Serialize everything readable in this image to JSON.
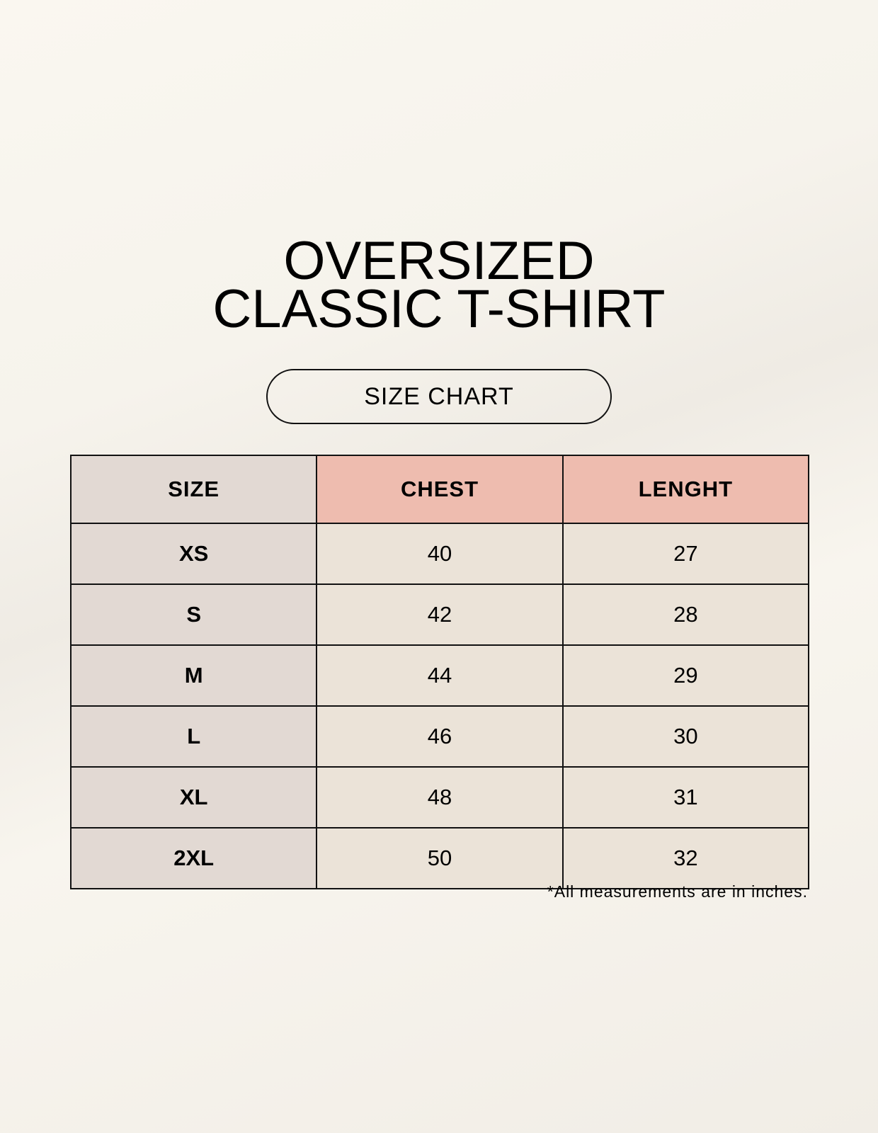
{
  "title": {
    "line1": "OVERSIZED",
    "line2": "CLASSIC T-SHIRT"
  },
  "badge": "SIZE CHART",
  "table": {
    "headers": [
      "SIZE",
      "CHEST",
      "LENGHT"
    ],
    "rows": [
      [
        "XS",
        "40",
        "27"
      ],
      [
        "S",
        "42",
        "28"
      ],
      [
        "M",
        "44",
        "29"
      ],
      [
        "L",
        "46",
        "30"
      ],
      [
        "XL",
        "48",
        "31"
      ],
      [
        "2XL",
        "50",
        "32"
      ]
    ]
  },
  "footnote": "*All measurements are in inches.",
  "colors": {
    "header_size": "#e2d9d3",
    "header_measure": "#eebcaf",
    "cell": "#ebe3d8"
  }
}
